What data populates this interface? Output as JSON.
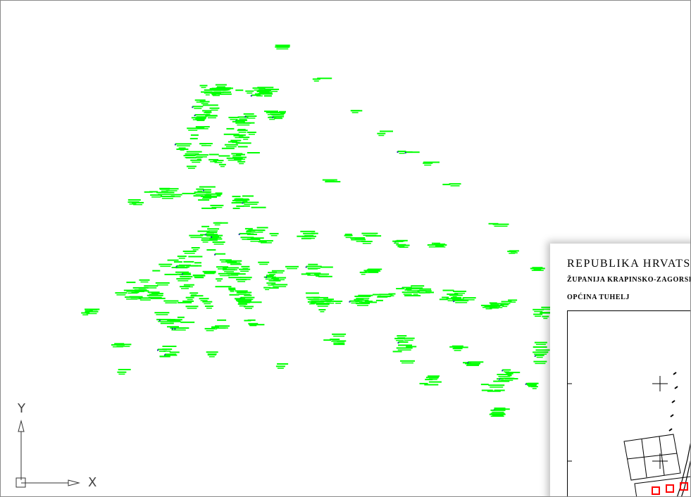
{
  "canvas": {
    "background": "#ffffff",
    "point_color": "#00ff00",
    "point_dark_color": "#2233aa",
    "parcel_color": "#ff0000"
  },
  "ucs": {
    "y_label": "Y",
    "x_label": "X"
  },
  "sheet": {
    "title": "REPUBLIKA HRVATSKA",
    "county": "ŽUPANIJA KRAPINSKO-ZAGORSKA",
    "municipality": "OPĆINA TUHELJ"
  }
}
